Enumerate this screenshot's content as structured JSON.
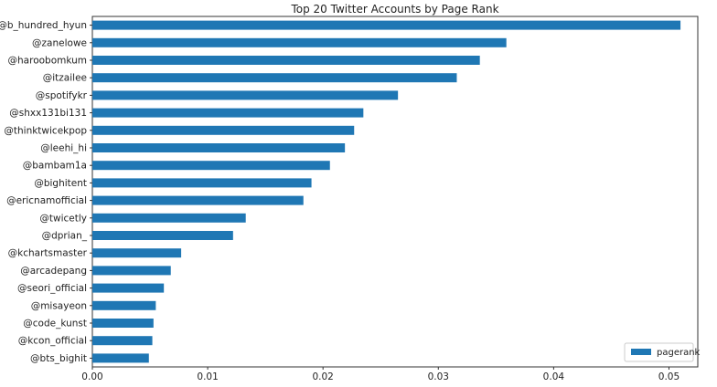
{
  "chart_data": {
    "type": "bar",
    "orientation": "horizontal",
    "title": "Top 20 Twitter Accounts by Page Rank",
    "xlabel": "",
    "ylabel": "",
    "xlim": [
      0,
      0.0525
    ],
    "xticks": [
      "0.00",
      "0.01",
      "0.02",
      "0.03",
      "0.04",
      "0.05"
    ],
    "xtick_values": [
      0,
      0.01,
      0.02,
      0.03,
      0.04,
      0.05
    ],
    "grid": false,
    "legend_placement": "lower-right",
    "bar_color": "#1f77b4",
    "categories": [
      "@b_hundred_hyun",
      "@zanelowe",
      "@haroobomkum",
      "@itzailee",
      "@spotifykr",
      "@shxx131bi131",
      "@thinktwicekpop",
      "@leehi_hi",
      "@bambam1a",
      "@bighitent",
      "@ericnamofficial",
      "@twicetly",
      "@dprian_",
      "@kchartsmaster",
      "@arcadepang",
      "@seori_official",
      "@misayeon",
      "@code_kunst",
      "@kcon_official",
      "@bts_bighit"
    ],
    "series": [
      {
        "name": "pagerank",
        "values": [
          0.051,
          0.0359,
          0.0336,
          0.0316,
          0.0265,
          0.0235,
          0.0227,
          0.0219,
          0.0206,
          0.019,
          0.0183,
          0.0133,
          0.0122,
          0.0077,
          0.0068,
          0.0062,
          0.0055,
          0.0053,
          0.0052,
          0.0049
        ]
      }
    ]
  }
}
